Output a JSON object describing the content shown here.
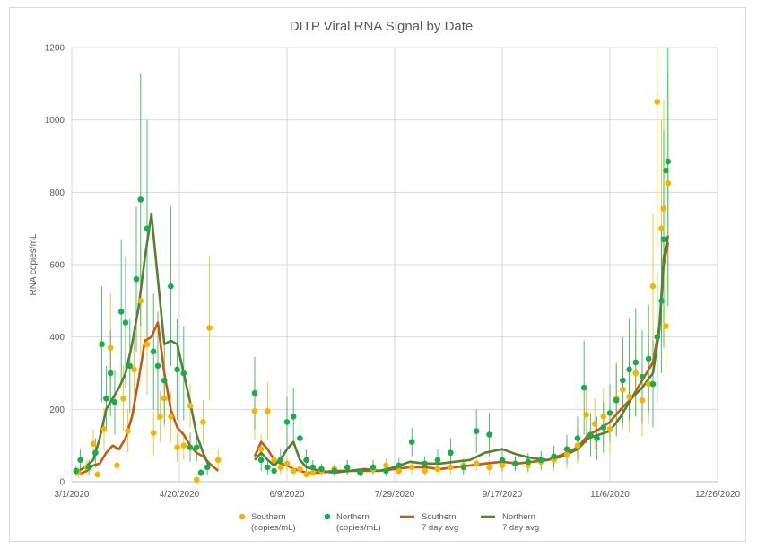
{
  "chart_data": {
    "type": "scatter",
    "title": "DITP Viral RNA Signal by Date",
    "xlabel": "",
    "ylabel": "RNA copies/mL",
    "ylim": [
      0,
      1200
    ],
    "yticks": [
      0,
      200,
      400,
      600,
      800,
      1000,
      1200
    ],
    "xlim": [
      "2020-03-01",
      "2020-12-26"
    ],
    "xticks": [
      "3/1/2020",
      "4/20/2020",
      "6/9/2020",
      "7/29/2020",
      "9/17/2020",
      "11/6/2020",
      "12/26/2020"
    ],
    "grid": true,
    "legend_position": "bottom",
    "colors": {
      "southern": "#f4b400",
      "northern": "#1aab4a",
      "southern_avg": "#c55a11",
      "northern_avg": "#548235"
    },
    "legend": [
      {
        "line1": "Southern",
        "line2": "(copies/mL)"
      },
      {
        "line1": "Northern",
        "line2": "(copies/mL)"
      },
      {
        "line1": "Southern",
        "line2": "7 day avg"
      },
      {
        "line1": "Northern",
        "line2": "7 day avg"
      }
    ],
    "series": [
      {
        "name": "Southern (copies/mL)",
        "kind": "scatter",
        "x": [
          "2020-03-04",
          "2020-03-08",
          "2020-03-11",
          "2020-03-13",
          "2020-03-16",
          "2020-03-19",
          "2020-03-22",
          "2020-03-25",
          "2020-03-27",
          "2020-03-30",
          "2020-04-02",
          "2020-04-05",
          "2020-04-08",
          "2020-04-11",
          "2020-04-13",
          "2020-04-16",
          "2020-04-19",
          "2020-04-22",
          "2020-04-25",
          "2020-04-28",
          "2020-05-01",
          "2020-05-04",
          "2020-05-08",
          "2020-05-25",
          "2020-05-28",
          "2020-05-31",
          "2020-06-03",
          "2020-06-06",
          "2020-06-09",
          "2020-06-12",
          "2020-06-15",
          "2020-06-18",
          "2020-06-21",
          "2020-06-25",
          "2020-07-01",
          "2020-07-07",
          "2020-07-13",
          "2020-07-19",
          "2020-07-25",
          "2020-07-31",
          "2020-08-06",
          "2020-08-12",
          "2020-08-18",
          "2020-08-24",
          "2020-08-30",
          "2020-09-05",
          "2020-09-11",
          "2020-09-17",
          "2020-09-23",
          "2020-09-29",
          "2020-10-05",
          "2020-10-11",
          "2020-10-17",
          "2020-10-22",
          "2020-10-26",
          "2020-10-30",
          "2020-11-03",
          "2020-11-06",
          "2020-11-09",
          "2020-11-12",
          "2020-11-15",
          "2020-11-18",
          "2020-11-21",
          "2020-11-24",
          "2020-11-26",
          "2020-11-28",
          "2020-11-30",
          "2020-12-01",
          "2020-12-02",
          "2020-12-03"
        ],
        "y": [
          25,
          40,
          105,
          20,
          145,
          370,
          45,
          230,
          140,
          310,
          500,
          380,
          135,
          180,
          230,
          180,
          95,
          100,
          210,
          5,
          165,
          425,
          60,
          195,
          90,
          195,
          60,
          40,
          50,
          30,
          35,
          20,
          25,
          30,
          35,
          40,
          25,
          35,
          45,
          30,
          40,
          30,
          35,
          40,
          45,
          50,
          40,
          45,
          50,
          45,
          55,
          60,
          75,
          100,
          185,
          160,
          180,
          145,
          230,
          255,
          235,
          300,
          225,
          270,
          540,
          1050,
          700,
          755,
          430,
          825
        ],
        "err": [
          15,
          20,
          40,
          10,
          60,
          150,
          20,
          90,
          60,
          120,
          150,
          140,
          60,
          70,
          80,
          70,
          40,
          40,
          60,
          3,
          60,
          200,
          30,
          80,
          40,
          80,
          30,
          20,
          20,
          15,
          15,
          10,
          10,
          15,
          15,
          20,
          10,
          15,
          20,
          15,
          20,
          15,
          15,
          20,
          20,
          20,
          20,
          20,
          20,
          20,
          25,
          30,
          40,
          50,
          80,
          70,
          80,
          70,
          100,
          110,
          100,
          120,
          100,
          110,
          200,
          400,
          300,
          300,
          130,
          300
        ]
      },
      {
        "name": "Northern (copies/mL)",
        "kind": "scatter",
        "x": [
          "2020-03-03",
          "2020-03-05",
          "2020-03-09",
          "2020-03-12",
          "2020-03-15",
          "2020-03-17",
          "2020-03-19",
          "2020-03-21",
          "2020-03-24",
          "2020-03-26",
          "2020-03-28",
          "2020-03-31",
          "2020-04-02",
          "2020-04-05",
          "2020-04-08",
          "2020-04-10",
          "2020-04-13",
          "2020-04-16",
          "2020-04-19",
          "2020-04-22",
          "2020-04-25",
          "2020-04-28",
          "2020-04-30",
          "2020-05-03",
          "2020-05-25",
          "2020-05-28",
          "2020-05-31",
          "2020-06-03",
          "2020-06-06",
          "2020-06-09",
          "2020-06-12",
          "2020-06-15",
          "2020-06-18",
          "2020-06-21",
          "2020-06-25",
          "2020-07-01",
          "2020-07-07",
          "2020-07-13",
          "2020-07-19",
          "2020-07-25",
          "2020-07-31",
          "2020-08-06",
          "2020-08-12",
          "2020-08-18",
          "2020-08-24",
          "2020-08-30",
          "2020-09-05",
          "2020-09-11",
          "2020-09-17",
          "2020-09-23",
          "2020-09-29",
          "2020-10-05",
          "2020-10-11",
          "2020-10-17",
          "2020-10-22",
          "2020-10-25",
          "2020-10-28",
          "2020-10-31",
          "2020-11-03",
          "2020-11-06",
          "2020-11-09",
          "2020-11-12",
          "2020-11-15",
          "2020-11-18",
          "2020-11-21",
          "2020-11-24",
          "2020-11-26",
          "2020-11-28",
          "2020-11-30",
          "2020-12-01",
          "2020-12-02",
          "2020-12-03"
        ],
        "y": [
          30,
          60,
          40,
          80,
          380,
          230,
          300,
          220,
          470,
          440,
          320,
          560,
          780,
          700,
          360,
          320,
          280,
          540,
          310,
          300,
          95,
          95,
          25,
          40,
          245,
          60,
          40,
          30,
          60,
          165,
          180,
          120,
          60,
          40,
          35,
          30,
          40,
          25,
          40,
          30,
          45,
          110,
          50,
          60,
          80,
          40,
          140,
          130,
          60,
          50,
          55,
          60,
          70,
          90,
          120,
          260,
          130,
          120,
          150,
          190,
          225,
          280,
          310,
          330,
          290,
          340,
          270,
          400,
          500,
          670,
          860,
          885
        ],
        "err": [
          15,
          30,
          20,
          40,
          160,
          90,
          120,
          90,
          200,
          180,
          130,
          200,
          350,
          300,
          160,
          150,
          120,
          220,
          140,
          130,
          40,
          40,
          10,
          20,
          100,
          30,
          20,
          15,
          30,
          70,
          80,
          60,
          30,
          20,
          15,
          15,
          20,
          10,
          20,
          15,
          20,
          40,
          20,
          30,
          40,
          20,
          60,
          60,
          30,
          20,
          25,
          25,
          30,
          40,
          60,
          130,
          60,
          60,
          70,
          80,
          100,
          120,
          140,
          150,
          130,
          150,
          120,
          180,
          200,
          300,
          400,
          400
        ]
      },
      {
        "name": "Southern 7 day avg",
        "kind": "line",
        "x": [
          "2020-03-04",
          "2020-03-08",
          "2020-03-11",
          "2020-03-14",
          "2020-03-17",
          "2020-03-20",
          "2020-03-23",
          "2020-03-26",
          "2020-03-29",
          "2020-04-01",
          "2020-04-04",
          "2020-04-07",
          "2020-04-10",
          "2020-04-13",
          "2020-04-16",
          "2020-04-19",
          "2020-04-22",
          "2020-04-25",
          "2020-04-28",
          "2020-05-01",
          "2020-05-04",
          "2020-05-08",
          "2020-05-25",
          "2020-05-28",
          "2020-05-31",
          "2020-06-03",
          "2020-06-06",
          "2020-06-09",
          "2020-06-12",
          "2020-06-15",
          "2020-06-18",
          "2020-06-24",
          "2020-07-01",
          "2020-07-08",
          "2020-07-15",
          "2020-07-22",
          "2020-07-29",
          "2020-08-05",
          "2020-08-12",
          "2020-08-19",
          "2020-08-26",
          "2020-09-02",
          "2020-09-09",
          "2020-09-17",
          "2020-09-24",
          "2020-10-01",
          "2020-10-08",
          "2020-10-15",
          "2020-10-22",
          "2020-10-27",
          "2020-11-01",
          "2020-11-06",
          "2020-11-11",
          "2020-11-16",
          "2020-11-21",
          "2020-11-26",
          "2020-11-29",
          "2020-12-01",
          "2020-12-03"
        ],
        "y": [
          20,
          30,
          45,
          50,
          80,
          100,
          90,
          120,
          180,
          280,
          390,
          400,
          440,
          300,
          200,
          150,
          130,
          100,
          80,
          70,
          50,
          30,
          70,
          110,
          90,
          60,
          50,
          45,
          35,
          30,
          25,
          25,
          30,
          30,
          30,
          30,
          35,
          40,
          40,
          35,
          40,
          45,
          50,
          55,
          50,
          55,
          60,
          75,
          95,
          130,
          145,
          165,
          200,
          230,
          280,
          330,
          430,
          600,
          660
        ]
      },
      {
        "name": "Northern 7 day avg",
        "kind": "line",
        "x": [
          "2020-03-03",
          "2020-03-07",
          "2020-03-11",
          "2020-03-14",
          "2020-03-17",
          "2020-03-20",
          "2020-03-23",
          "2020-03-26",
          "2020-03-29",
          "2020-04-01",
          "2020-04-04",
          "2020-04-07",
          "2020-04-10",
          "2020-04-13",
          "2020-04-16",
          "2020-04-19",
          "2020-04-22",
          "2020-04-25",
          "2020-04-28",
          "2020-05-01",
          "2020-05-04",
          "2020-05-25",
          "2020-05-28",
          "2020-05-31",
          "2020-06-03",
          "2020-06-06",
          "2020-06-09",
          "2020-06-12",
          "2020-06-15",
          "2020-06-18",
          "2020-06-24",
          "2020-07-01",
          "2020-07-08",
          "2020-07-15",
          "2020-07-22",
          "2020-07-29",
          "2020-08-05",
          "2020-08-12",
          "2020-08-19",
          "2020-08-26",
          "2020-09-02",
          "2020-09-09",
          "2020-09-17",
          "2020-09-24",
          "2020-10-01",
          "2020-10-08",
          "2020-10-15",
          "2020-10-22",
          "2020-10-27",
          "2020-11-01",
          "2020-11-06",
          "2020-11-11",
          "2020-11-16",
          "2020-11-21",
          "2020-11-26",
          "2020-11-29",
          "2020-12-01",
          "2020-12-03"
        ],
        "y": [
          25,
          40,
          60,
          120,
          200,
          230,
          260,
          300,
          380,
          480,
          620,
          740,
          560,
          380,
          390,
          380,
          300,
          220,
          130,
          80,
          40,
          60,
          80,
          60,
          45,
          60,
          90,
          110,
          60,
          40,
          30,
          25,
          30,
          35,
          30,
          40,
          55,
          50,
          50,
          55,
          60,
          80,
          90,
          75,
          65,
          60,
          70,
          90,
          120,
          130,
          140,
          180,
          230,
          260,
          300,
          420,
          620,
          680
        ]
      }
    ]
  }
}
